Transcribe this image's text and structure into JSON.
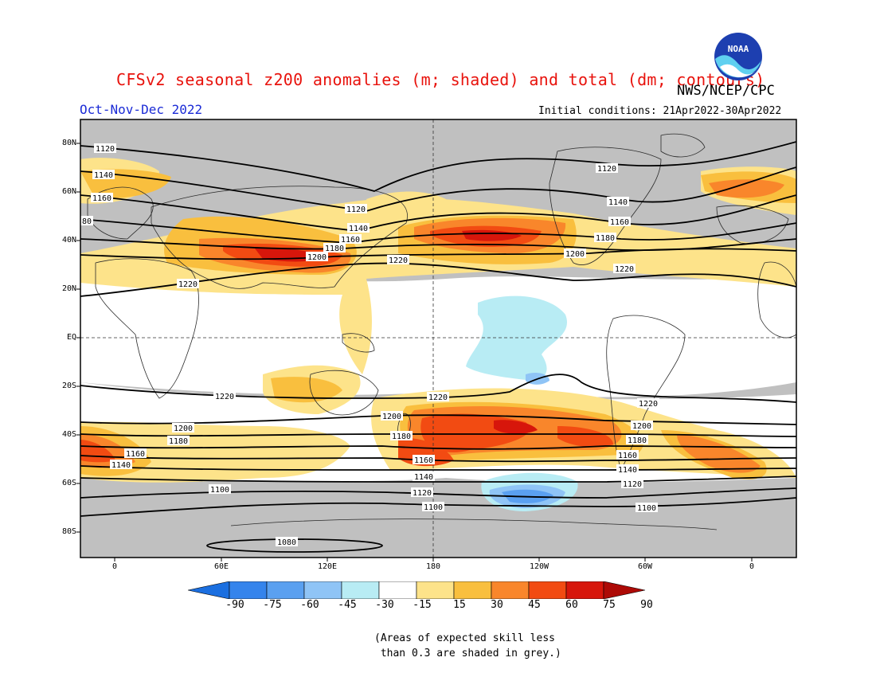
{
  "title": "CFSv2 seasonal z200 anomalies (m; shaded) and total (dm; contours)",
  "agency": "NWS/NCEP/CPC",
  "logo_text": "NOAA",
  "period": "Oct-Nov-Dec 2022",
  "initial_conditions": "Initial conditions: 21Apr2022-30Apr2022",
  "lat_labels": [
    "80N",
    "60N",
    "40N",
    "20N",
    "EQ",
    "20S",
    "40S",
    "60S",
    "80S"
  ],
  "lon_labels": [
    "0",
    "60E",
    "120E",
    "180",
    "120W",
    "60W",
    "0"
  ],
  "colorbar": {
    "ticks": [
      "-90",
      "-75",
      "-60",
      "-45",
      "-30",
      "-15",
      "15",
      "30",
      "45",
      "60",
      "75",
      "90"
    ],
    "colors": [
      "#1b6fe0",
      "#3584ec",
      "#5aa0f0",
      "#8fc4f6",
      "#b8ecf4",
      "#ffffff",
      "#fde38a",
      "#f9bf3e",
      "#f9862b",
      "#f24b12",
      "#d7160b",
      "#ad0a06"
    ]
  },
  "footnote": "(Areas of expected skill less\n than 0.3 are shaded in grey.)",
  "contour_labels": {
    "c1120a": "1120",
    "c1120b": "1120",
    "c1120c": "1120",
    "c1140a": "1140",
    "c1140b": "1140",
    "c1140c": "1140",
    "c1160a": "1160",
    "c1160b": "1160",
    "c1160c": "1160",
    "c1180a": "1180",
    "c1180b": "1180",
    "c1200a": "1200",
    "c1200b": "1200",
    "c1220a": "1220",
    "c1220b": "1220",
    "c1220c": "1220",
    "c80": "80",
    "s1220a": "1220",
    "s1220b": "1220",
    "s1220c": "1220",
    "s1200a": "1200",
    "s1200b": "1200",
    "s1200c": "1200",
    "s1180a": "1180",
    "s1180b": "1180",
    "s1180c": "1180",
    "s1160a": "1160",
    "s1160b": "1160",
    "s1160c": "1160",
    "s1140a": "1140",
    "s1140b": "1140",
    "s1140c": "1140",
    "s1120a": "1120",
    "s1120b": "1120",
    "s1100a": "1100",
    "s1100b": "1100",
    "s1100c": "1100",
    "s1080": "1080"
  }
}
